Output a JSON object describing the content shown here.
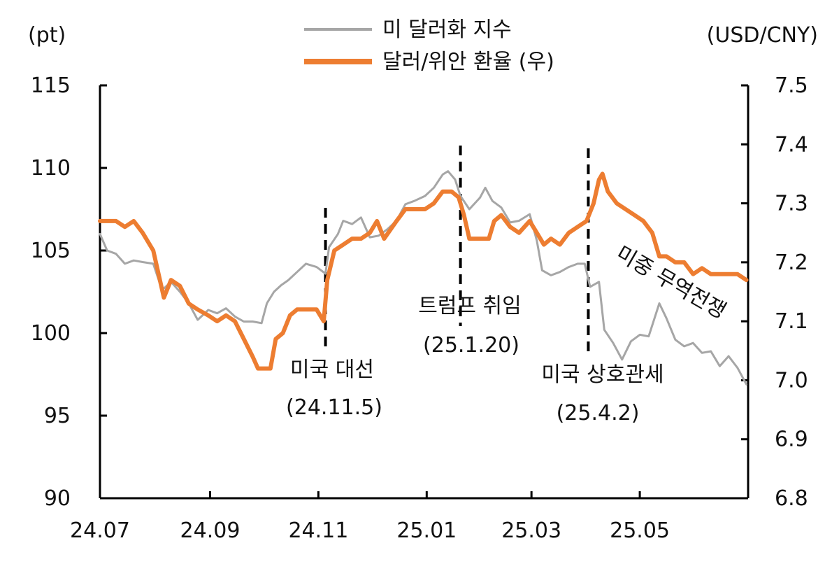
{
  "chart_data": {
    "type": "line",
    "title": "",
    "x_ticks": [
      "24.07",
      "24.09",
      "24.11",
      "25.01",
      "25.03",
      "25.05"
    ],
    "y_left": {
      "unit": "(pt)",
      "min": 90,
      "max": 115,
      "ticks": [
        90,
        95,
        100,
        105,
        110,
        115
      ]
    },
    "y_right": {
      "unit": "(USD/CNY)",
      "min": 6.8,
      "max": 7.5,
      "ticks": [
        "6.8",
        "6.9",
        "7.0",
        "7.1",
        "7.2",
        "7.3",
        "7.4",
        "7.5"
      ]
    },
    "legend": {
      "placement": "top-center"
    },
    "series": [
      {
        "name": "미 달러화 지수",
        "axis": "left",
        "color": "#a6a6a6",
        "points": [
          [
            "2024-07-01",
            106.0
          ],
          [
            "2024-07-05",
            105.0
          ],
          [
            "2024-07-10",
            104.8
          ],
          [
            "2024-07-15",
            104.2
          ],
          [
            "2024-07-20",
            104.4
          ],
          [
            "2024-07-25",
            104.3
          ],
          [
            "2024-07-31",
            104.2
          ],
          [
            "2024-08-05",
            102.6
          ],
          [
            "2024-08-10",
            103.1
          ],
          [
            "2024-08-15",
            102.5
          ],
          [
            "2024-08-20",
            101.8
          ],
          [
            "2024-08-25",
            100.8
          ],
          [
            "2024-08-31",
            101.4
          ],
          [
            "2024-09-05",
            101.2
          ],
          [
            "2024-09-10",
            101.5
          ],
          [
            "2024-09-15",
            101.0
          ],
          [
            "2024-09-20",
            100.7
          ],
          [
            "2024-09-25",
            100.7
          ],
          [
            "2024-09-30",
            100.6
          ],
          [
            "2024-10-03",
            101.8
          ],
          [
            "2024-10-07",
            102.5
          ],
          [
            "2024-10-11",
            102.9
          ],
          [
            "2024-10-15",
            103.2
          ],
          [
            "2024-10-20",
            103.7
          ],
          [
            "2024-10-25",
            104.2
          ],
          [
            "2024-10-31",
            104.0
          ],
          [
            "2024-11-05",
            103.6
          ],
          [
            "2024-11-07",
            105.2
          ],
          [
            "2024-11-12",
            106.0
          ],
          [
            "2024-11-15",
            106.8
          ],
          [
            "2024-11-20",
            106.6
          ],
          [
            "2024-11-25",
            107.0
          ],
          [
            "2024-11-30",
            105.8
          ],
          [
            "2024-12-05",
            105.9
          ],
          [
            "2024-12-10",
            106.3
          ],
          [
            "2024-12-15",
            106.8
          ],
          [
            "2024-12-20",
            107.8
          ],
          [
            "2024-12-25",
            108.0
          ],
          [
            "2024-12-31",
            108.3
          ],
          [
            "2025-01-05",
            108.8
          ],
          [
            "2025-01-10",
            109.6
          ],
          [
            "2025-01-13",
            109.8
          ],
          [
            "2025-01-17",
            109.3
          ],
          [
            "2025-01-20",
            108.3
          ],
          [
            "2025-01-25",
            107.5
          ],
          [
            "2025-01-31",
            108.2
          ],
          [
            "2025-02-03",
            108.8
          ],
          [
            "2025-02-07",
            108.0
          ],
          [
            "2025-02-12",
            107.6
          ],
          [
            "2025-02-17",
            106.7
          ],
          [
            "2025-02-22",
            106.8
          ],
          [
            "2025-02-28",
            107.2
          ],
          [
            "2025-03-04",
            105.6
          ],
          [
            "2025-03-07",
            103.8
          ],
          [
            "2025-03-12",
            103.5
          ],
          [
            "2025-03-17",
            103.7
          ],
          [
            "2025-03-22",
            104.0
          ],
          [
            "2025-03-27",
            104.2
          ],
          [
            "2025-03-31",
            104.2
          ],
          [
            "2025-04-03",
            102.8
          ],
          [
            "2025-04-08",
            103.1
          ],
          [
            "2025-04-11",
            100.2
          ],
          [
            "2025-04-16",
            99.4
          ],
          [
            "2025-04-21",
            98.4
          ],
          [
            "2025-04-26",
            99.5
          ],
          [
            "2025-05-01",
            99.9
          ],
          [
            "2025-05-06",
            99.8
          ],
          [
            "2025-05-12",
            101.8
          ],
          [
            "2025-05-16",
            100.9
          ],
          [
            "2025-05-21",
            99.6
          ],
          [
            "2025-05-26",
            99.2
          ],
          [
            "2025-05-31",
            99.4
          ],
          [
            "2025-06-05",
            98.8
          ],
          [
            "2025-06-10",
            98.9
          ],
          [
            "2025-06-15",
            98.0
          ],
          [
            "2025-06-20",
            98.6
          ],
          [
            "2025-06-25",
            97.9
          ],
          [
            "2025-06-30",
            96.9
          ]
        ]
      },
      {
        "name": "달러/위안 환율 (우)",
        "axis": "right",
        "color": "#ed7d31",
        "points": [
          [
            "2024-07-01",
            7.27
          ],
          [
            "2024-07-10",
            7.27
          ],
          [
            "2024-07-15",
            7.26
          ],
          [
            "2024-07-20",
            7.27
          ],
          [
            "2024-07-25",
            7.25
          ],
          [
            "2024-07-31",
            7.22
          ],
          [
            "2024-08-03",
            7.18
          ],
          [
            "2024-08-06",
            7.14
          ],
          [
            "2024-08-10",
            7.17
          ],
          [
            "2024-08-15",
            7.16
          ],
          [
            "2024-08-20",
            7.13
          ],
          [
            "2024-08-25",
            7.12
          ],
          [
            "2024-08-31",
            7.11
          ],
          [
            "2024-09-05",
            7.1
          ],
          [
            "2024-09-10",
            7.11
          ],
          [
            "2024-09-15",
            7.1
          ],
          [
            "2024-09-20",
            7.07
          ],
          [
            "2024-09-25",
            7.04
          ],
          [
            "2024-09-28",
            7.02
          ],
          [
            "2024-10-05",
            7.02
          ],
          [
            "2024-10-08",
            7.07
          ],
          [
            "2024-10-12",
            7.08
          ],
          [
            "2024-10-16",
            7.11
          ],
          [
            "2024-10-20",
            7.12
          ],
          [
            "2024-10-25",
            7.12
          ],
          [
            "2024-10-31",
            7.12
          ],
          [
            "2024-11-04",
            7.1
          ],
          [
            "2024-11-06",
            7.17
          ],
          [
            "2024-11-10",
            7.22
          ],
          [
            "2024-11-15",
            7.23
          ],
          [
            "2024-11-20",
            7.24
          ],
          [
            "2024-11-25",
            7.24
          ],
          [
            "2024-11-30",
            7.25
          ],
          [
            "2024-12-04",
            7.27
          ],
          [
            "2024-12-08",
            7.24
          ],
          [
            "2024-12-15",
            7.27
          ],
          [
            "2024-12-20",
            7.29
          ],
          [
            "2024-12-25",
            7.29
          ],
          [
            "2024-12-31",
            7.29
          ],
          [
            "2025-01-05",
            7.3
          ],
          [
            "2025-01-10",
            7.32
          ],
          [
            "2025-01-15",
            7.32
          ],
          [
            "2025-01-19",
            7.31
          ],
          [
            "2025-01-22",
            7.28
          ],
          [
            "2025-01-25",
            7.24
          ],
          [
            "2025-01-31",
            7.24
          ],
          [
            "2025-02-05",
            7.24
          ],
          [
            "2025-02-08",
            7.27
          ],
          [
            "2025-02-12",
            7.28
          ],
          [
            "2025-02-17",
            7.26
          ],
          [
            "2025-02-22",
            7.25
          ],
          [
            "2025-02-28",
            7.27
          ],
          [
            "2025-03-04",
            7.25
          ],
          [
            "2025-03-08",
            7.23
          ],
          [
            "2025-03-12",
            7.24
          ],
          [
            "2025-03-17",
            7.23
          ],
          [
            "2025-03-22",
            7.25
          ],
          [
            "2025-03-27",
            7.26
          ],
          [
            "2025-04-01",
            7.27
          ],
          [
            "2025-04-05",
            7.3
          ],
          [
            "2025-04-08",
            7.34
          ],
          [
            "2025-04-10",
            7.35
          ],
          [
            "2025-04-13",
            7.32
          ],
          [
            "2025-04-18",
            7.3
          ],
          [
            "2025-04-23",
            7.29
          ],
          [
            "2025-04-28",
            7.28
          ],
          [
            "2025-05-03",
            7.27
          ],
          [
            "2025-05-08",
            7.25
          ],
          [
            "2025-05-12",
            7.21
          ],
          [
            "2025-05-16",
            7.21
          ],
          [
            "2025-05-21",
            7.2
          ],
          [
            "2025-05-26",
            7.2
          ],
          [
            "2025-05-31",
            7.18
          ],
          [
            "2025-06-05",
            7.19
          ],
          [
            "2025-06-10",
            7.18
          ],
          [
            "2025-06-15",
            7.18
          ],
          [
            "2025-06-20",
            7.18
          ],
          [
            "2025-06-25",
            7.18
          ],
          [
            "2025-06-30",
            7.17
          ]
        ]
      }
    ],
    "annotations": [
      {
        "x": "2024-11-05",
        "lines": [
          "미국 대선",
          "(24.11.5)"
        ]
      },
      {
        "x": "2025-01-20",
        "lines": [
          "트럼프 취임",
          "(25.1.20)"
        ]
      },
      {
        "x": "2025-04-02",
        "lines": [
          "미국 상호관세",
          "(25.4.2)"
        ]
      }
    ],
    "trade_war_label": "미중 무역전쟁"
  }
}
